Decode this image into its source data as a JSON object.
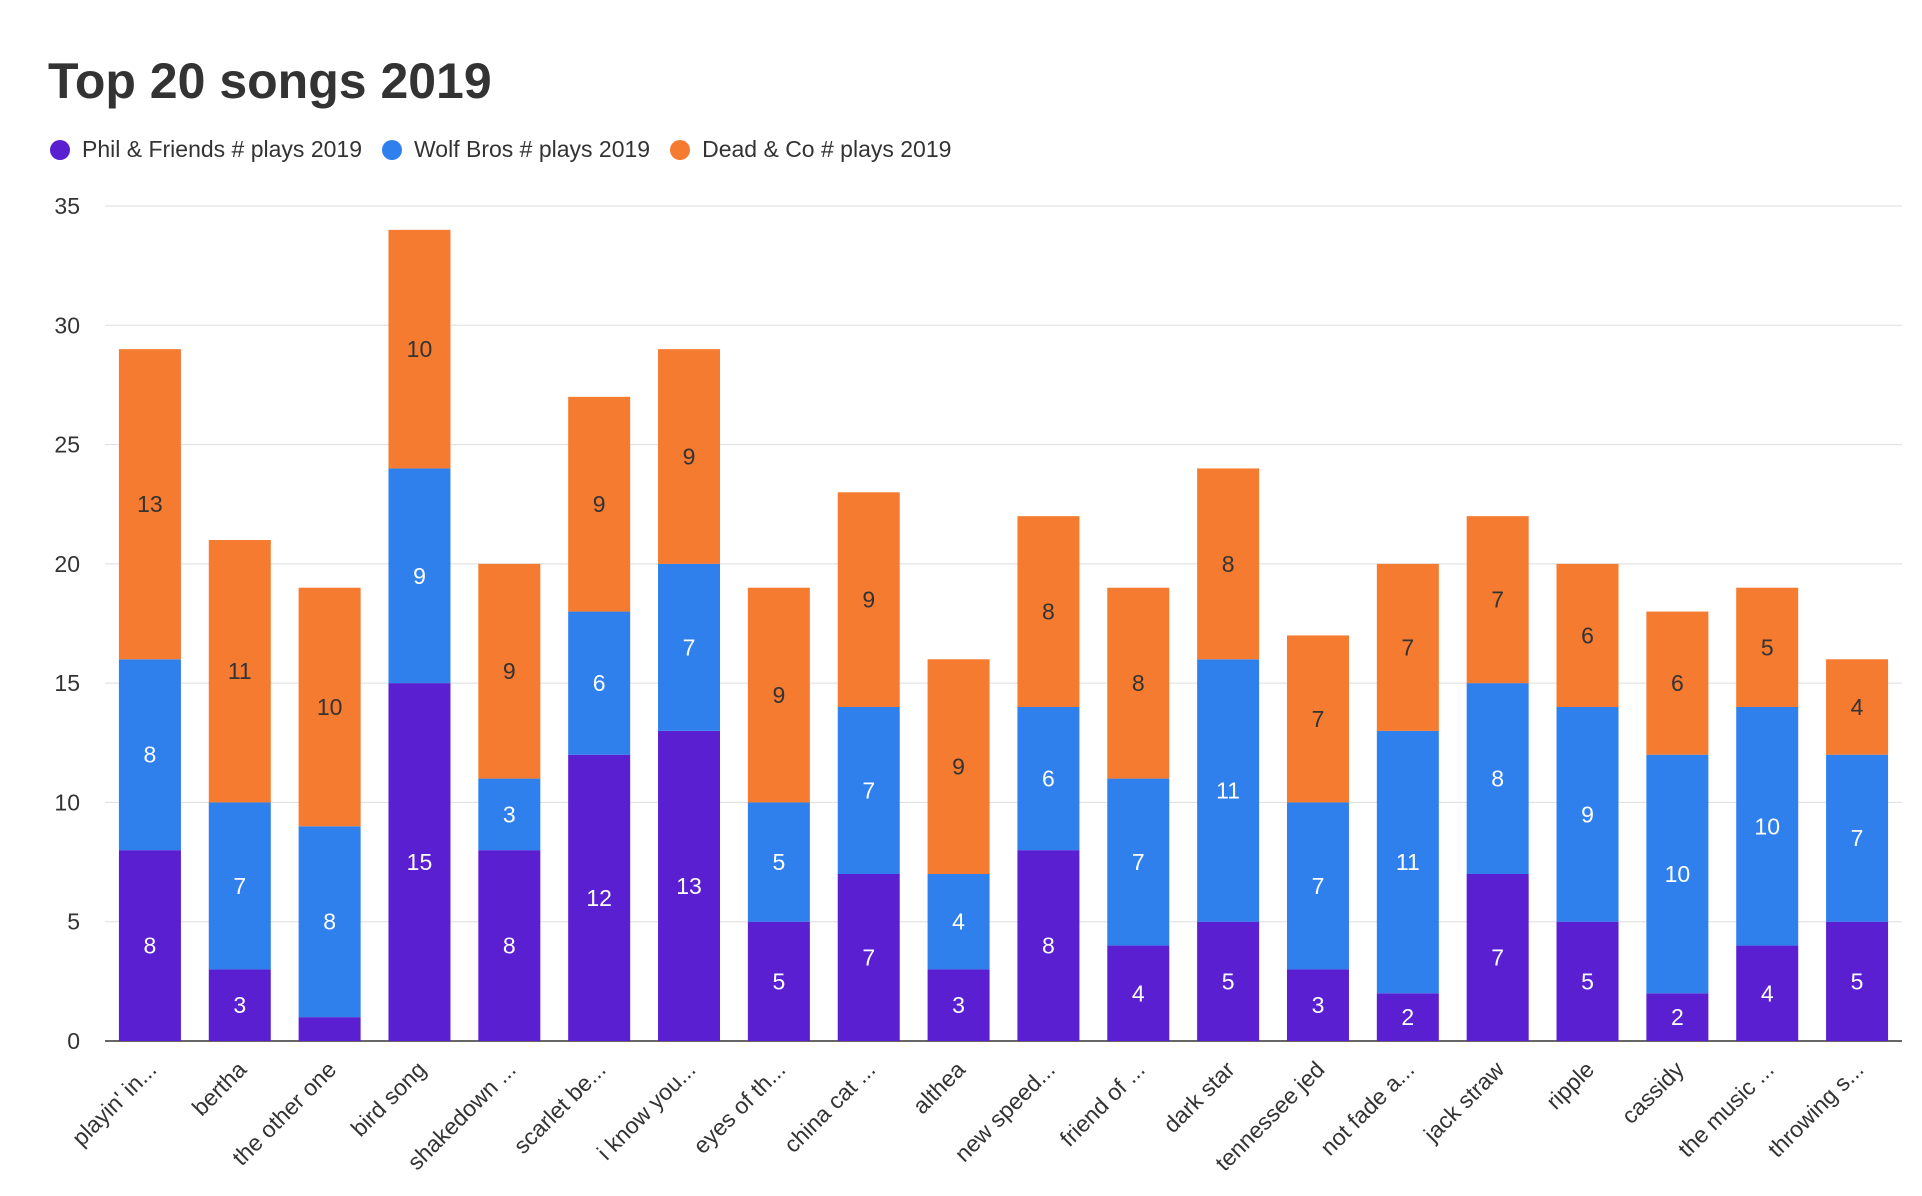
{
  "chart_data": {
    "type": "bar",
    "stacked": true,
    "title": "Top 20 songs 2019",
    "xlabel": "",
    "ylabel": "",
    "ylim": [
      0,
      35
    ],
    "yticks": [
      0,
      5,
      10,
      15,
      20,
      25,
      30,
      35
    ],
    "grid": true,
    "legend_position": "top-left",
    "categories": [
      "playin' in...",
      "bertha",
      "the other one",
      "bird song",
      "shakedown ...",
      "scarlet be...",
      "i know you...",
      "eyes of th...",
      "china cat ...",
      "althea",
      "new speed...",
      "friend of ...",
      "dark star",
      "tennessee jed",
      "not fade a...",
      "jack straw",
      "ripple",
      "cassidy",
      "the music ...",
      "throwing s..."
    ],
    "series": [
      {
        "name": "Phil & Friends # plays 2019",
        "color": "#5a1fd1",
        "label_color": "#ffffff",
        "values": [
          8,
          3,
          1,
          15,
          8,
          12,
          13,
          5,
          7,
          3,
          8,
          4,
          5,
          3,
          2,
          7,
          5,
          2,
          4,
          5
        ],
        "labels": [
          "8",
          "3",
          "",
          "15",
          "8",
          "12",
          "13",
          "5",
          "7",
          "3",
          "8",
          "4",
          "5",
          "3",
          "2",
          "7",
          "5",
          "2",
          "4",
          "5"
        ]
      },
      {
        "name": "Wolf Bros # plays 2019",
        "color": "#2f80ed",
        "label_color": "#ffffff",
        "values": [
          8,
          7,
          8,
          9,
          3,
          6,
          7,
          5,
          7,
          4,
          6,
          7,
          11,
          7,
          11,
          8,
          9,
          10,
          10,
          7
        ],
        "labels": [
          "8",
          "7",
          "8",
          "9",
          "3",
          "6",
          "7",
          "5",
          "7",
          "4",
          "6",
          "7",
          "11",
          "7",
          "11",
          "8",
          "9",
          "10",
          "10",
          "7"
        ]
      },
      {
        "name": "Dead & Co # plays 2019",
        "color": "#f47b30",
        "label_color": "#333333",
        "values": [
          13,
          11,
          10,
          10,
          9,
          9,
          9,
          9,
          9,
          9,
          8,
          8,
          8,
          7,
          7,
          7,
          6,
          6,
          5,
          4
        ],
        "labels": [
          "13",
          "11",
          "10",
          "10",
          "9",
          "9",
          "9",
          "9",
          "9",
          "9",
          "8",
          "8",
          "8",
          "7",
          "7",
          "7",
          "6",
          "6",
          "5",
          "4"
        ]
      }
    ]
  }
}
